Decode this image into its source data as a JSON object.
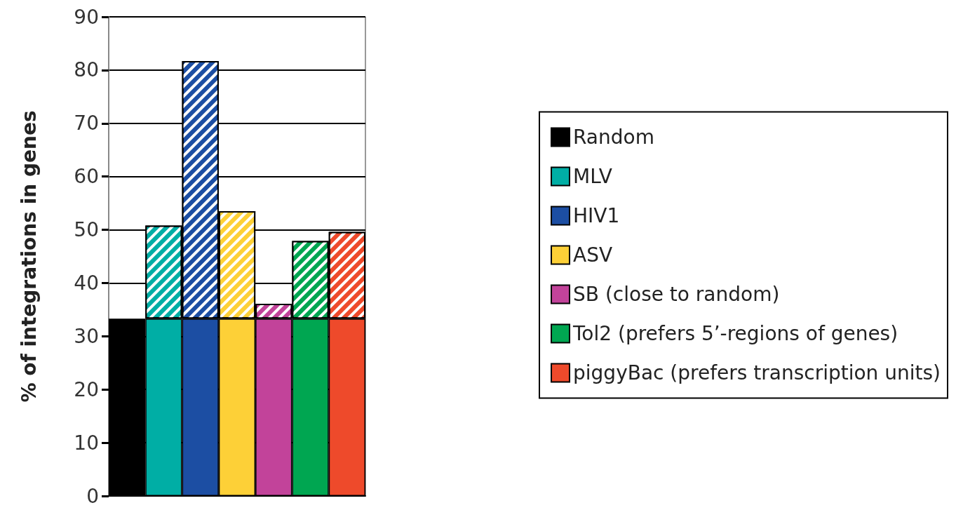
{
  "chart_data": {
    "type": "bar",
    "ylabel": "% of integrations in genes",
    "categories": [
      null,
      null,
      null,
      null,
      null,
      null,
      null
    ],
    "stacked": true,
    "series": [
      {
        "name": "Random",
        "color": "#000000",
        "values": [
          33.3,
          null,
          null,
          null,
          null,
          null,
          null
        ]
      },
      {
        "name": "MLV",
        "color": "#00aea5",
        "values": [
          null,
          33.3,
          null,
          null,
          null,
          null,
          null
        ]
      },
      {
        "name": "HIV1",
        "color": "#1c4ea3",
        "values": [
          null,
          null,
          33.3,
          null,
          null,
          null,
          null
        ]
      },
      {
        "name": "ASV",
        "color": "#fdd037",
        "values": [
          null,
          null,
          null,
          33.3,
          null,
          null,
          null
        ]
      },
      {
        "name": "SB (close to random)",
        "color": "#c2439a",
        "values": [
          null,
          null,
          null,
          null,
          33.3,
          null,
          null
        ]
      },
      {
        "name": "Tol2 (prefers 5’-regions of genes)",
        "color": "#00a651",
        "values": [
          null,
          null,
          null,
          null,
          null,
          33.3,
          null
        ]
      },
      {
        "name": "piggyBac (prefers transcription units)",
        "color": "#ee4a2b",
        "values": [
          null,
          null,
          null,
          null,
          null,
          null,
          33.3
        ]
      },
      {
        "colors": [
          "#000000",
          "#00aea5",
          "#1c4ea3",
          "#fdd037",
          "#c2439a",
          "#00a651",
          "#ee4a2b"
        ],
        "values": [
          null,
          17.5,
          48.4,
          20.2,
          2.8,
          14.6,
          16.3
        ]
      }
    ],
    "ylim": [
      0,
      90
    ],
    "yticks": [
      0,
      10,
      20,
      30,
      40,
      50,
      60,
      70,
      80,
      90
    ],
    "grid": "y",
    "legend": "right"
  }
}
